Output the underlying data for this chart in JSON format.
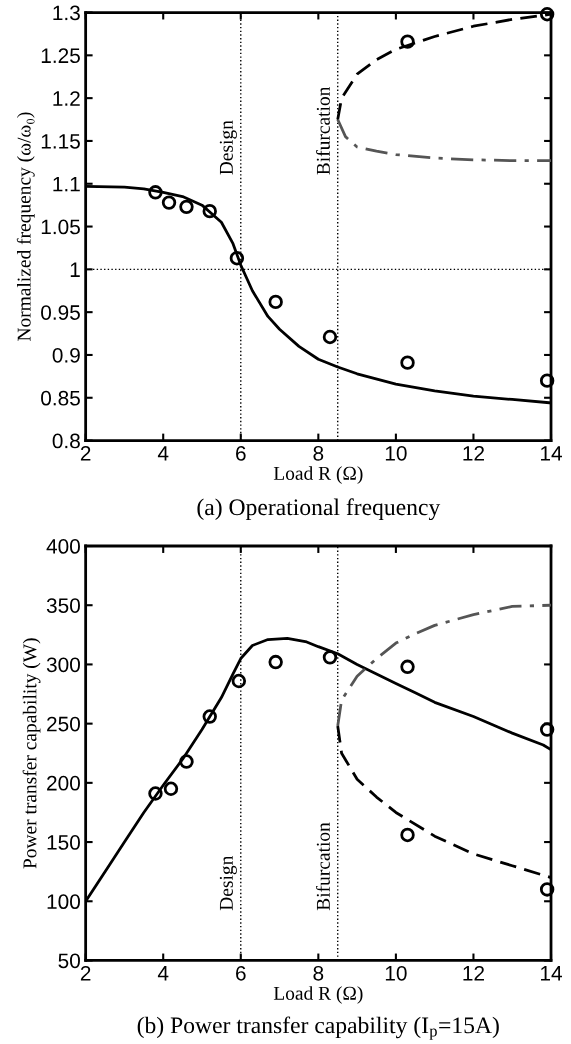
{
  "chart_data": [
    {
      "type": "line",
      "title": "(a) Operational frequency",
      "xlabel": "Load R (Ω)",
      "ylabel": "Normalized frequency (ω/ω₀)",
      "xlim": [
        2,
        14
      ],
      "xticks": [
        2,
        4,
        6,
        8,
        10,
        12,
        14
      ],
      "ylim": [
        0.8,
        1.3
      ],
      "yticks": [
        0.8,
        0.85,
        0.9,
        0.95,
        1,
        1.05,
        1.1,
        1.15,
        1.2,
        1.25,
        1.3
      ],
      "ref_lines": [
        {
          "axis": "x",
          "value": 6,
          "label": "Design",
          "line_style": "dotted"
        },
        {
          "axis": "x",
          "value": 8.5,
          "label": "Bifurcation",
          "line_style": "dotted"
        },
        {
          "axis": "y",
          "value": 1,
          "line_style": "dotted"
        }
      ],
      "series": [
        {
          "type": "line",
          "color": "#000000",
          "line_style": "solid",
          "marker": "none",
          "x": [
            2,
            3,
            3.5,
            4,
            4.5,
            5,
            5.5,
            5.8,
            6,
            6.3,
            6.7,
            7,
            7.5,
            8,
            8.5,
            9,
            10,
            11,
            12,
            13,
            14
          ],
          "values": [
            1.097,
            1.096,
            1.094,
            1.09,
            1.085,
            1.075,
            1.055,
            1.03,
            1.005,
            0.975,
            0.945,
            0.93,
            0.91,
            0.895,
            0.886,
            0.878,
            0.866,
            0.858,
            0.852,
            0.848,
            0.844
          ]
        },
        {
          "type": "line",
          "color": "#000000",
          "line_style": "dashed",
          "marker": "none",
          "x": [
            8.5,
            8.6,
            9,
            9.5,
            10,
            11,
            12,
            13,
            14
          ],
          "values": [
            1.175,
            1.2,
            1.228,
            1.245,
            1.257,
            1.272,
            1.284,
            1.292,
            1.298
          ]
        },
        {
          "type": "line",
          "color": "#555555",
          "line_style": "dashdot",
          "marker": "none",
          "x": [
            8.5,
            8.7,
            9,
            9.5,
            10,
            11,
            12,
            13,
            14
          ],
          "values": [
            1.175,
            1.155,
            1.143,
            1.138,
            1.134,
            1.13,
            1.128,
            1.127,
            1.127
          ]
        },
        {
          "type": "scatter",
          "color": "#000000",
          "marker": "circle",
          "x": [
            3.8,
            4.15,
            4.6,
            5.2,
            5.9,
            6.9,
            8.3,
            10.3,
            13.9,
            10.3,
            13.9
          ],
          "values": [
            1.09,
            1.078,
            1.073,
            1.068,
            1.013,
            0.962,
            0.921,
            0.891,
            0.87,
            1.266,
            1.298
          ]
        }
      ]
    },
    {
      "type": "line",
      "title": "(b) Power transfer capability (I$_{p}$=15A)",
      "xlabel": "Load R (Ω)",
      "ylabel": "Power transfer capability (W)",
      "xlim": [
        2,
        14
      ],
      "xticks": [
        2,
        4,
        6,
        8,
        10,
        12,
        14
      ],
      "ylim": [
        50,
        400
      ],
      "yticks": [
        50,
        100,
        150,
        200,
        250,
        300,
        350,
        400
      ],
      "ref_lines": [
        {
          "axis": "x",
          "value": 6,
          "label": "Design",
          "line_style": "dotted"
        },
        {
          "axis": "x",
          "value": 8.5,
          "label": "Bifurcation",
          "line_style": "dotted"
        }
      ],
      "series": [
        {
          "type": "line",
          "color": "#000000",
          "line_style": "solid",
          "marker": "none",
          "x": [
            2,
            2.5,
            3,
            3.5,
            4,
            4.5,
            5,
            5.5,
            5.8,
            6,
            6.3,
            6.7,
            7.2,
            7.7,
            8,
            8.5,
            9,
            9.5,
            10,
            10.5,
            11,
            12,
            13,
            13.8,
            14
          ],
          "values": [
            100,
            125,
            150,
            175,
            198,
            220,
            245,
            272,
            292,
            305,
            316,
            321,
            322,
            319,
            315,
            309,
            300,
            292,
            284,
            276,
            268,
            256,
            242,
            232,
            228
          ]
        },
        {
          "type": "line",
          "color": "#555555",
          "line_style": "dashdot",
          "marker": "none",
          "x": [
            8.5,
            8.6,
            9,
            9.5,
            10,
            10.5,
            11,
            12,
            13,
            14
          ],
          "values": [
            248,
            270,
            290,
            305,
            318,
            326,
            333,
            342,
            349,
            350
          ]
        },
        {
          "type": "line",
          "color": "#000000",
          "line_style": "dashed",
          "marker": "none",
          "x": [
            8.5,
            8.6,
            9,
            9.5,
            10,
            11,
            12,
            13,
            14
          ],
          "values": [
            248,
            225,
            203,
            188,
            175,
            155,
            140,
            130,
            120
          ]
        },
        {
          "type": "scatter",
          "color": "#000000",
          "marker": "circle",
          "x": [
            3.8,
            4.2,
            4.6,
            5.2,
            5.95,
            6.9,
            8.3,
            10.3,
            10.3,
            13.9,
            13.9
          ],
          "values": [
            191,
            195,
            218,
            256,
            286,
            302,
            306,
            298,
            156,
            245,
            110
          ]
        }
      ]
    }
  ]
}
